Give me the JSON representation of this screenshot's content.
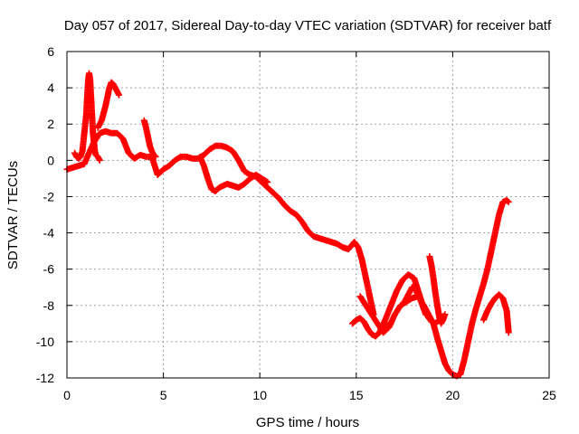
{
  "chart_data": {
    "type": "scatter",
    "title": "Day 057 of 2017, Sidereal Day-to-day VTEC variation (SDTVAR) for receiver batf",
    "xlabel": "GPS time / hours",
    "ylabel": "SDTVAR / TECUs",
    "xlim": [
      0,
      25
    ],
    "ylim": [
      -12,
      6
    ],
    "xticks": [
      0,
      5,
      10,
      15,
      20,
      25
    ],
    "yticks": [
      -12,
      -10,
      -8,
      -6,
      -4,
      -2,
      0,
      2,
      4,
      6
    ],
    "grid": true,
    "marker": "+",
    "series_color": "#ff0000",
    "series": [
      {
        "x": [
          0.0,
          0.3,
          0.6,
          0.9,
          1.1,
          1.4,
          1.7,
          2.0,
          2.3,
          2.6,
          2.9,
          3.2,
          3.5,
          3.8,
          4.1,
          4.4,
          4.7,
          5.0,
          5.3,
          5.6,
          5.9,
          6.2,
          6.5,
          6.8,
          7.1,
          7.4,
          7.7,
          8.0,
          8.3,
          8.6,
          8.9,
          9.2,
          9.5,
          9.8,
          10.1,
          10.4,
          10.7,
          11.0,
          11.3,
          11.6,
          11.9,
          12.2,
          12.5,
          12.8,
          13.1,
          13.4,
          13.7,
          14.0,
          14.3,
          14.6,
          14.9,
          15.1,
          15.3,
          15.5,
          15.7,
          15.9
        ],
        "y": [
          -0.5,
          -0.4,
          -0.3,
          -0.2,
          0.3,
          1.0,
          1.5,
          1.6,
          1.5,
          1.5,
          1.2,
          0.4,
          0.1,
          0.3,
          0.2,
          0.2,
          -0.8,
          -0.5,
          -0.3,
          0.0,
          0.2,
          0.2,
          0.1,
          0.1,
          0.3,
          0.6,
          0.8,
          0.8,
          0.7,
          0.5,
          0.0,
          -0.6,
          -0.8,
          -0.9,
          -1.2,
          -1.5,
          -1.8,
          -2.1,
          -2.5,
          -2.8,
          -3.0,
          -3.4,
          -3.9,
          -4.2,
          -4.3,
          -4.4,
          -4.5,
          -4.6,
          -4.8,
          -4.9,
          -4.5,
          -4.8,
          -5.5,
          -6.5,
          -7.5,
          -8.5
        ]
      },
      {
        "x": [
          0.4,
          0.5,
          0.6,
          0.7,
          0.8,
          0.9,
          1.0,
          1.05,
          1.1,
          1.15,
          1.2,
          1.25,
          1.3,
          1.35,
          1.4,
          1.45,
          1.5,
          1.6,
          1.7
        ],
        "y": [
          0.4,
          0.2,
          0.1,
          0.2,
          0.5,
          1.5,
          2.5,
          3.5,
          4.4,
          4.8,
          4.5,
          3.5,
          2.5,
          1.5,
          1.0,
          0.5,
          0.3,
          0.2,
          0.0
        ]
      },
      {
        "x": [
          1.6,
          1.7,
          1.8,
          1.9,
          2.0,
          2.1,
          2.2,
          2.3,
          2.4,
          2.5,
          2.6,
          2.7
        ],
        "y": [
          1.8,
          2.0,
          2.2,
          2.6,
          3.0,
          3.5,
          4.0,
          4.3,
          4.2,
          4.0,
          3.8,
          3.6
        ]
      },
      {
        "x": [
          4.0,
          4.1,
          4.2,
          4.3,
          4.4,
          4.5,
          4.6
        ],
        "y": [
          2.2,
          1.8,
          1.3,
          0.8,
          0.5,
          0.3,
          0.2
        ]
      },
      {
        "x": [
          6.9,
          7.1,
          7.3,
          7.5,
          7.7,
          7.9,
          8.1,
          8.3,
          8.6,
          8.9,
          9.2,
          9.5,
          9.8,
          10.1,
          10.4
        ],
        "y": [
          0.2,
          -0.3,
          -1.0,
          -1.6,
          -1.7,
          -1.5,
          -1.4,
          -1.3,
          -1.4,
          -1.5,
          -1.3,
          -1.0,
          -0.8,
          -1.0,
          -1.2
        ]
      },
      {
        "x": [
          14.8,
          15.0,
          15.2,
          15.4,
          15.6,
          15.8,
          16.0,
          16.2,
          16.4,
          16.6,
          16.8
        ],
        "y": [
          -9.0,
          -8.8,
          -8.7,
          -8.9,
          -9.3,
          -9.6,
          -9.7,
          -9.5,
          -9.3,
          -9.1,
          -9.0
        ]
      },
      {
        "x": [
          15.2,
          15.5,
          15.8,
          16.1,
          16.4,
          16.7,
          17.0,
          17.3,
          17.6,
          17.9,
          18.2,
          18.5,
          18.8,
          19.0,
          19.2,
          19.4,
          19.6,
          19.8,
          20.0,
          20.2,
          20.4
        ],
        "y": [
          -7.5,
          -8.0,
          -8.5,
          -9.0,
          -9.5,
          -9.2,
          -8.5,
          -8.0,
          -7.8,
          -7.6,
          -7.5,
          -8.0,
          -8.6,
          -9.0,
          -9.8,
          -10.5,
          -11.2,
          -11.6,
          -11.8,
          -11.9,
          -11.8
        ]
      },
      {
        "x": [
          16.2,
          16.5,
          16.8,
          17.1,
          17.4,
          17.7,
          18.0,
          18.3,
          18.6
        ],
        "y": [
          -9.5,
          -8.8,
          -8.0,
          -7.2,
          -6.6,
          -6.3,
          -6.5,
          -7.5,
          -8.5
        ]
      },
      {
        "x": [
          17.5,
          17.7,
          17.9,
          18.1,
          18.3,
          18.5,
          18.7,
          18.9,
          19.1,
          19.3,
          19.5
        ],
        "y": [
          -7.8,
          -7.4,
          -7.0,
          -7.2,
          -7.6,
          -8.2,
          -8.6,
          -8.9,
          -9.0,
          -8.8,
          -8.6
        ]
      },
      {
        "x": [
          18.8,
          18.9,
          19.0,
          19.1,
          19.2,
          19.3,
          19.4,
          19.5,
          19.6
        ],
        "y": [
          -5.3,
          -5.8,
          -6.5,
          -7.3,
          -8.0,
          -8.6,
          -9.0,
          -8.8,
          -8.5
        ]
      },
      {
        "x": [
          20.4,
          20.6,
          20.8,
          21.0,
          21.2,
          21.4,
          21.6,
          21.8,
          22.0,
          22.2,
          22.4,
          22.6,
          22.8,
          22.9
        ],
        "y": [
          -11.8,
          -11.0,
          -10.0,
          -9.0,
          -8.2,
          -7.5,
          -6.8,
          -6.0,
          -5.0,
          -4.0,
          -3.0,
          -2.3,
          -2.2,
          -2.3
        ]
      },
      {
        "x": [
          21.6,
          21.8,
          22.0,
          22.2,
          22.4,
          22.6,
          22.8,
          22.9
        ],
        "y": [
          -8.8,
          -8.3,
          -7.9,
          -7.6,
          -7.4,
          -7.6,
          -8.3,
          -9.5
        ]
      }
    ]
  }
}
